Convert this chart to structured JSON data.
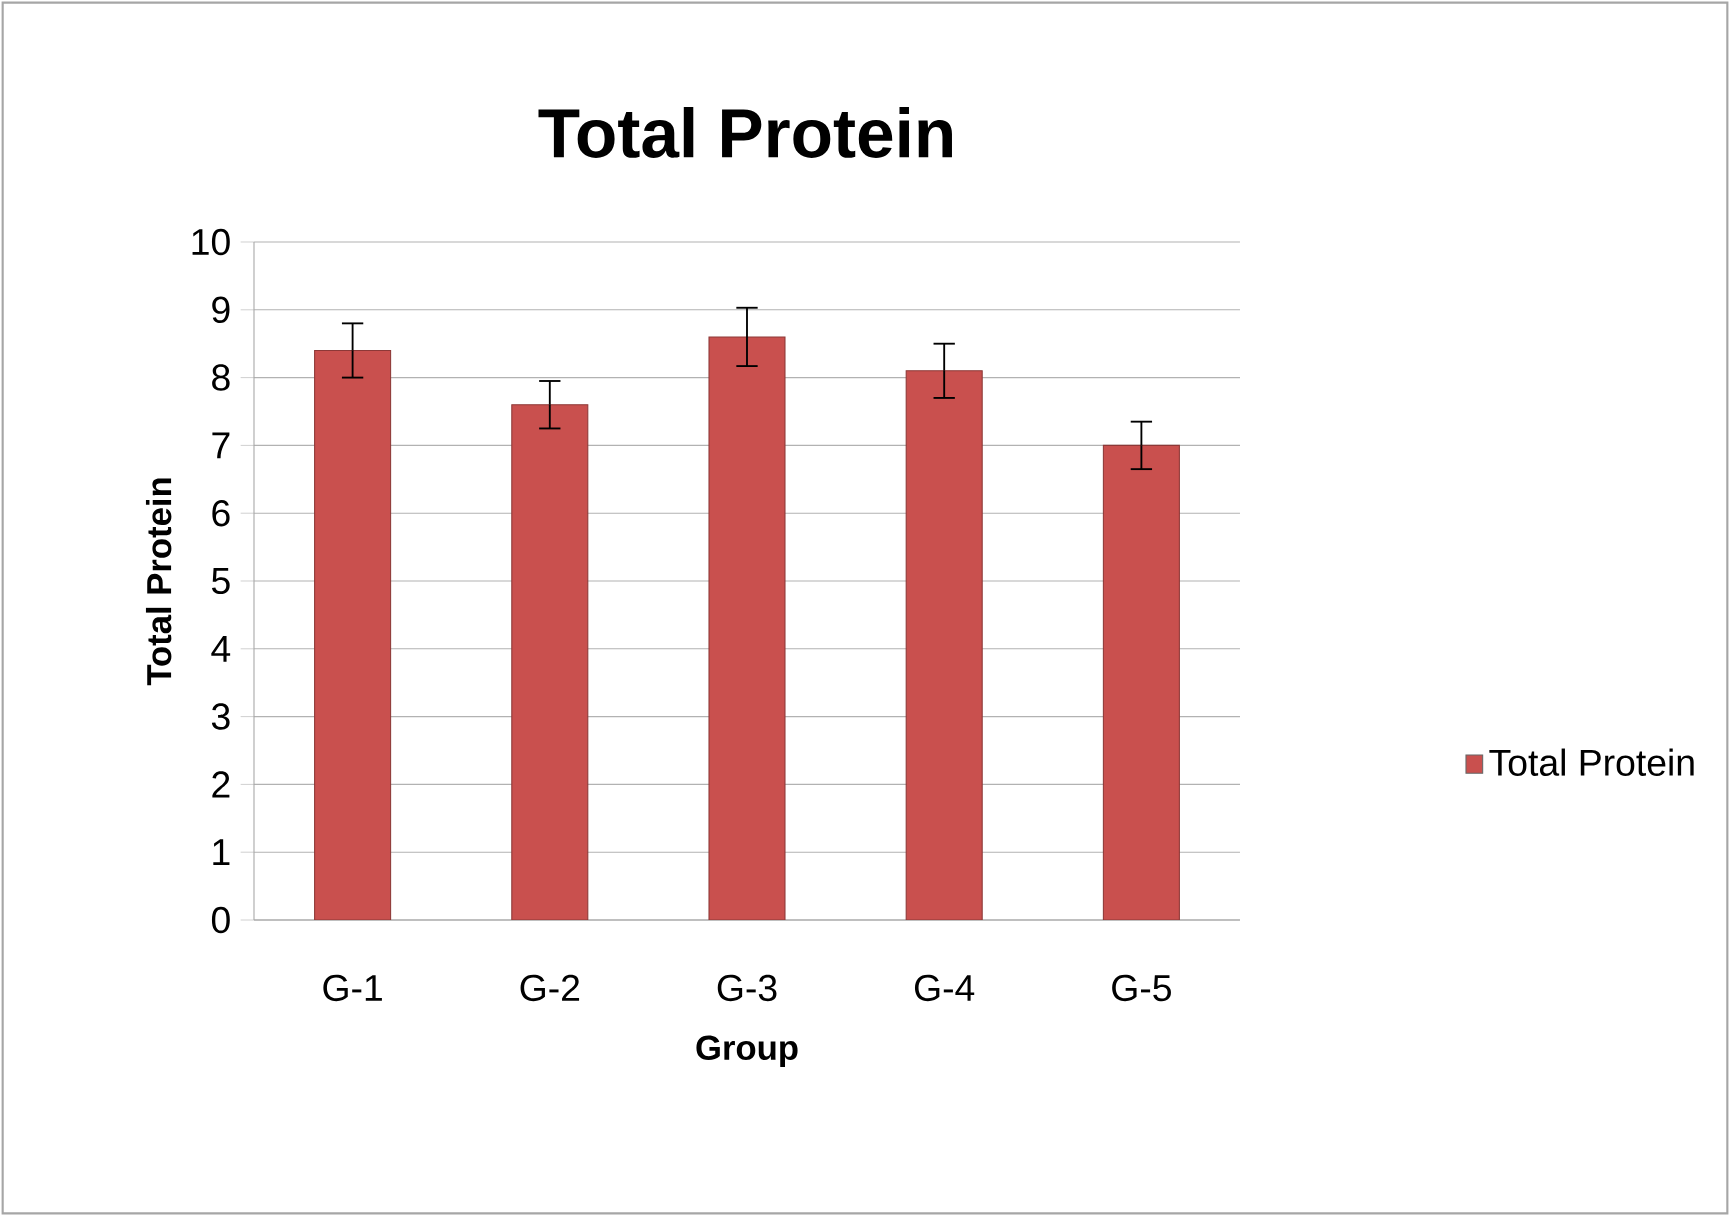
{
  "chart_data": {
    "type": "bar",
    "title": "Total Protein",
    "xlabel": "Group",
    "ylabel": "Total Protein",
    "categories": [
      "G-1",
      "G-2",
      "G-3",
      "G-4",
      "G-5"
    ],
    "series": [
      {
        "name": "Total Protein",
        "color": "#c9504e",
        "values": [
          8.4,
          7.6,
          8.6,
          8.1,
          7.0
        ],
        "errors": [
          0.4,
          0.35,
          0.43,
          0.4,
          0.35
        ]
      }
    ],
    "ylim": [
      0,
      10
    ],
    "yticks": [
      0,
      1,
      2,
      3,
      4,
      5,
      6,
      7,
      8,
      9,
      10
    ],
    "grid": "y",
    "legend": "right"
  }
}
